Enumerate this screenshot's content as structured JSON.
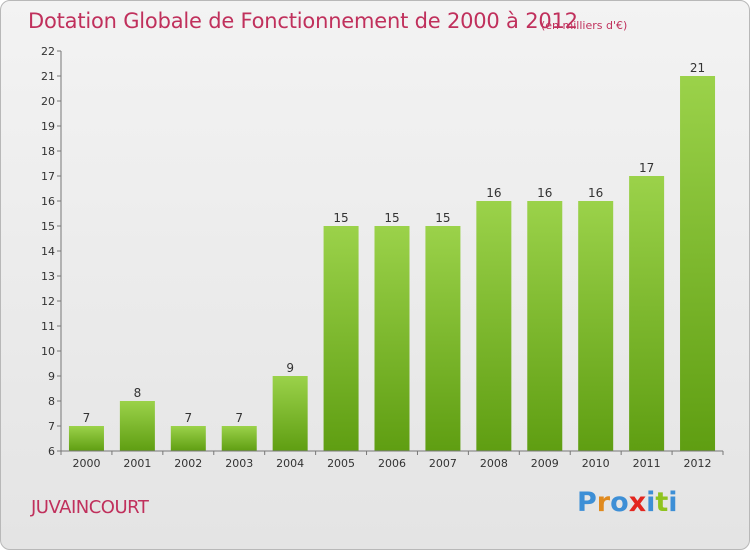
{
  "header": {
    "title": "Dotation Globale de Fonctionnement de 2000 à 2012",
    "unit_note": "(en milliers d'€)"
  },
  "footer": {
    "commune": "JUVAINCOURT",
    "brand": "Proxiti"
  },
  "colors": {
    "title": "#c0305c",
    "bar_top": "#9bd24a",
    "bar_bottom": "#5f9e12",
    "logo_letters": [
      "#3d8fd6",
      "#e08a1e",
      "#3d8fd6",
      "#e3261f",
      "#3d8fd6",
      "#8fc31f",
      "#3d8fd6"
    ]
  },
  "chart_data": {
    "type": "bar",
    "categories": [
      "2000",
      "2001",
      "2002",
      "2003",
      "2004",
      "2005",
      "2006",
      "2007",
      "2008",
      "2009",
      "2010",
      "2011",
      "2012"
    ],
    "values": [
      7,
      8,
      7,
      7,
      9,
      15,
      15,
      15,
      16,
      16,
      16,
      17,
      21
    ],
    "ylim": [
      6,
      22
    ],
    "yticks": [
      6,
      7,
      8,
      9,
      10,
      11,
      12,
      13,
      14,
      15,
      16,
      17,
      18,
      19,
      20,
      21,
      22
    ],
    "grid": false,
    "data_labels": true
  }
}
